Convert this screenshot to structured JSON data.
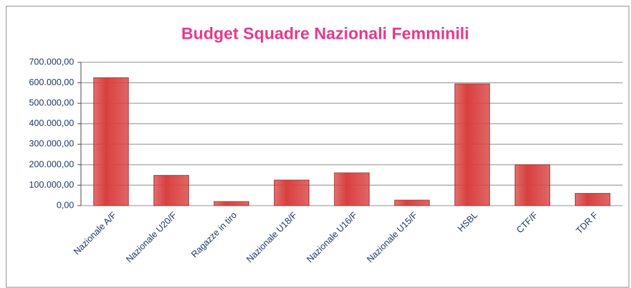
{
  "chart_data": {
    "type": "bar",
    "title": "Budget Squadre Nazionali Femminili",
    "categories": [
      "Nazionale A/F",
      "Nazionale U20/F",
      "Ragazze in tiro",
      "Nazionale U18/F",
      "Nazionale U16/F",
      "Nazionale U15/F",
      "HSBL",
      "CTF/F",
      "TDR F"
    ],
    "values": [
      625000,
      148000,
      20000,
      125000,
      160000,
      27000,
      595000,
      200000,
      60000
    ],
    "color": "#d8403f",
    "ylim": [
      0,
      700000
    ],
    "yticks": [
      {
        "value": 0,
        "label": "0,00"
      },
      {
        "value": 100000,
        "label": "100.000,00"
      },
      {
        "value": 200000,
        "label": "200.000,00"
      },
      {
        "value": 300000,
        "label": "300.000,00"
      },
      {
        "value": 400000,
        "label": "400.000,00"
      },
      {
        "value": 500000,
        "label": "500.000,00"
      },
      {
        "value": 600000,
        "label": "600.000,00"
      },
      {
        "value": 700000,
        "label": "700.000,00"
      }
    ],
    "grid": true
  }
}
